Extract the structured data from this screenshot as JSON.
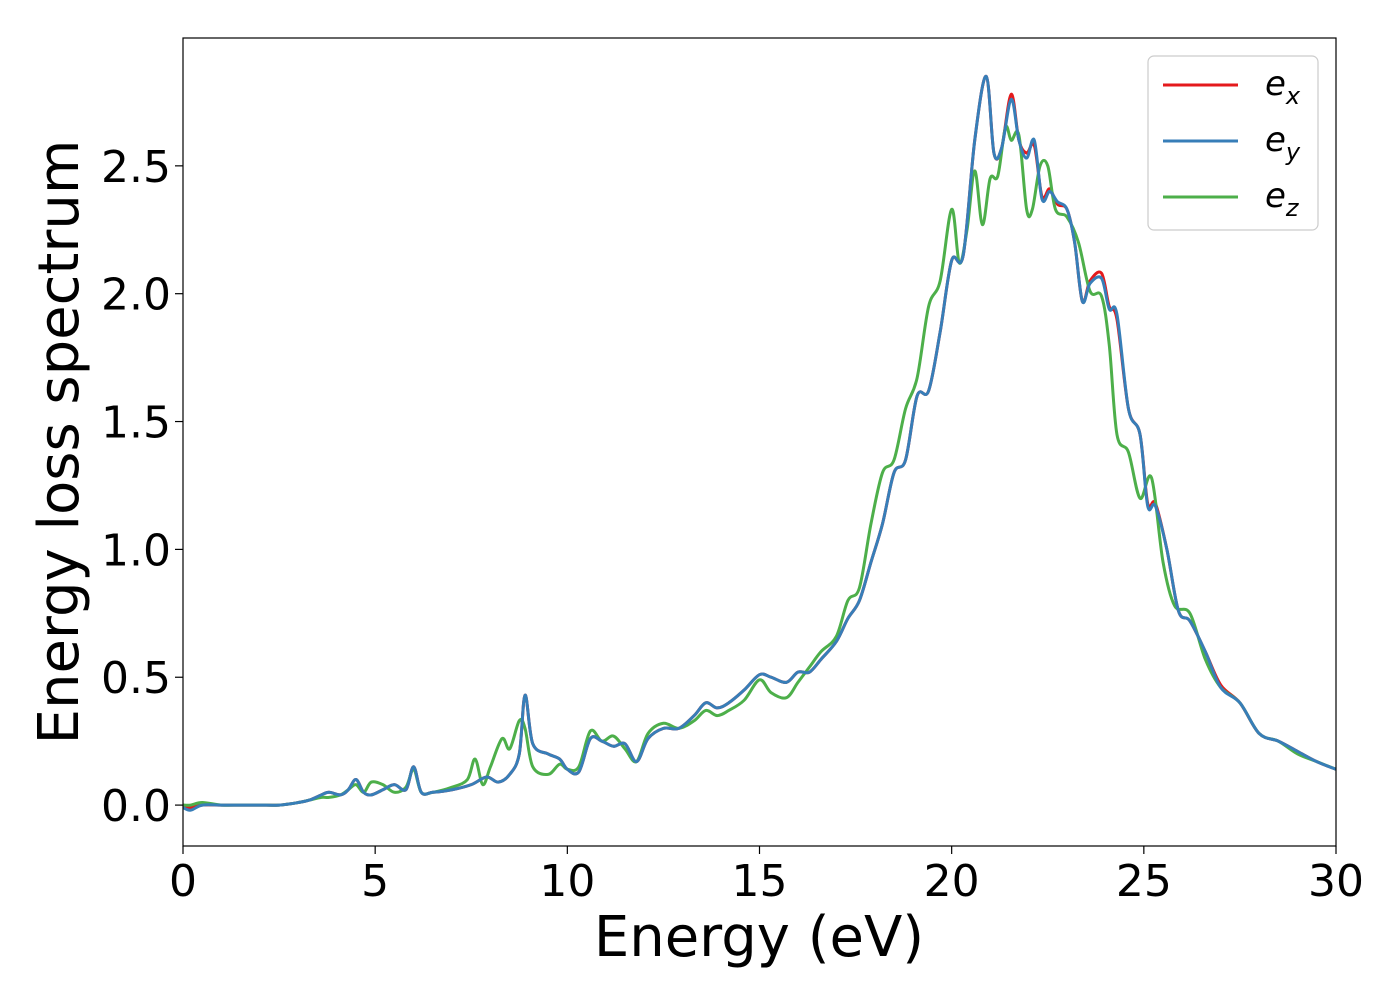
{
  "chart_data": {
    "type": "line",
    "xlabel": "Energy (eV)",
    "ylabel": "Energy loss spectrum",
    "xlim": [
      0,
      30
    ],
    "ylim": [
      -0.16,
      3.0
    ],
    "xticks": [
      "0",
      "5",
      "10",
      "15",
      "20",
      "25",
      "30"
    ],
    "yticks": [
      "0.0",
      "0.5",
      "1.0",
      "1.5",
      "2.0",
      "2.5"
    ],
    "grid": false,
    "legend_position": "top-right",
    "series": [
      {
        "name": "e",
        "subscript": "x",
        "color": "#e41a1c",
        "x": [
          0,
          0.2,
          0.5,
          1,
          1.5,
          2,
          2.5,
          3,
          3.3,
          3.6,
          3.8,
          4.1,
          4.3,
          4.5,
          4.7,
          4.9,
          5.2,
          5.5,
          5.8,
          6.0,
          6.2,
          6.5,
          7.0,
          7.5,
          7.9,
          8.2,
          8.5,
          8.75,
          8.9,
          9.1,
          9.5,
          9.8,
          10.0,
          10.3,
          10.6,
          10.9,
          11.2,
          11.5,
          11.8,
          12.1,
          12.5,
          12.9,
          13.3,
          13.6,
          13.9,
          14.2,
          14.6,
          15.0,
          15.3,
          15.7,
          16.0,
          16.3,
          16.6,
          17.0,
          17.3,
          17.6,
          17.9,
          18.2,
          18.5,
          18.8,
          19.1,
          19.4,
          19.7,
          20.0,
          20.3,
          20.6,
          20.9,
          21.1,
          21.3,
          21.55,
          21.75,
          21.95,
          22.15,
          22.35,
          22.55,
          22.75,
          23.0,
          23.2,
          23.4,
          23.6,
          23.9,
          24.1,
          24.3,
          24.6,
          24.9,
          25.1,
          25.3,
          25.6,
          25.9,
          26.2,
          26.6,
          27.0,
          27.5,
          28.0,
          28.5,
          29.0,
          29.5,
          30.0
        ],
        "y": [
          0.0,
          -0.01,
          0.0,
          0.0,
          0.0,
          0.0,
          0.0,
          0.01,
          0.02,
          0.04,
          0.05,
          0.04,
          0.06,
          0.1,
          0.05,
          0.04,
          0.06,
          0.08,
          0.06,
          0.15,
          0.05,
          0.05,
          0.06,
          0.08,
          0.11,
          0.09,
          0.12,
          0.2,
          0.43,
          0.24,
          0.2,
          0.18,
          0.14,
          0.13,
          0.26,
          0.25,
          0.23,
          0.24,
          0.17,
          0.26,
          0.3,
          0.3,
          0.35,
          0.4,
          0.38,
          0.4,
          0.45,
          0.51,
          0.5,
          0.48,
          0.52,
          0.52,
          0.57,
          0.64,
          0.73,
          0.8,
          0.95,
          1.1,
          1.3,
          1.35,
          1.6,
          1.62,
          1.85,
          2.13,
          2.15,
          2.6,
          2.85,
          2.55,
          2.57,
          2.78,
          2.6,
          2.55,
          2.58,
          2.38,
          2.41,
          2.35,
          2.33,
          2.2,
          1.97,
          2.05,
          2.08,
          1.95,
          1.9,
          1.55,
          1.45,
          1.18,
          1.18,
          1.0,
          0.76,
          0.72,
          0.6,
          0.47,
          0.4,
          0.28,
          0.25,
          0.21,
          0.17,
          0.14
        ]
      },
      {
        "name": "e",
        "subscript": "y",
        "color": "#377eb8",
        "x": [
          0,
          0.2,
          0.5,
          1,
          1.5,
          2,
          2.5,
          3,
          3.3,
          3.6,
          3.8,
          4.1,
          4.3,
          4.5,
          4.7,
          4.9,
          5.2,
          5.5,
          5.8,
          6.0,
          6.2,
          6.5,
          7.0,
          7.5,
          7.9,
          8.2,
          8.5,
          8.75,
          8.9,
          9.1,
          9.5,
          9.8,
          10.0,
          10.3,
          10.6,
          10.9,
          11.2,
          11.5,
          11.8,
          12.1,
          12.5,
          12.9,
          13.3,
          13.6,
          13.9,
          14.2,
          14.6,
          15.0,
          15.3,
          15.7,
          16.0,
          16.3,
          16.6,
          17.0,
          17.3,
          17.6,
          17.9,
          18.2,
          18.5,
          18.8,
          19.1,
          19.4,
          19.7,
          20.0,
          20.3,
          20.6,
          20.9,
          21.1,
          21.3,
          21.55,
          21.75,
          21.95,
          22.15,
          22.35,
          22.55,
          22.75,
          23.0,
          23.2,
          23.4,
          23.6,
          23.9,
          24.1,
          24.3,
          24.6,
          24.9,
          25.1,
          25.3,
          25.6,
          25.9,
          26.2,
          26.6,
          27.0,
          27.5,
          28.0,
          28.5,
          29.0,
          29.5,
          30.0
        ],
        "y": [
          -0.01,
          -0.02,
          0.0,
          0.0,
          0.0,
          0.0,
          0.0,
          0.01,
          0.02,
          0.04,
          0.05,
          0.04,
          0.06,
          0.1,
          0.05,
          0.04,
          0.06,
          0.08,
          0.06,
          0.15,
          0.05,
          0.05,
          0.06,
          0.08,
          0.11,
          0.09,
          0.12,
          0.2,
          0.43,
          0.24,
          0.2,
          0.18,
          0.14,
          0.13,
          0.26,
          0.25,
          0.23,
          0.24,
          0.17,
          0.26,
          0.3,
          0.3,
          0.35,
          0.4,
          0.38,
          0.4,
          0.45,
          0.51,
          0.5,
          0.48,
          0.52,
          0.52,
          0.57,
          0.64,
          0.73,
          0.8,
          0.95,
          1.1,
          1.3,
          1.35,
          1.6,
          1.62,
          1.85,
          2.13,
          2.15,
          2.6,
          2.85,
          2.55,
          2.57,
          2.76,
          2.6,
          2.53,
          2.6,
          2.37,
          2.4,
          2.36,
          2.33,
          2.2,
          1.97,
          2.04,
          2.06,
          1.94,
          1.92,
          1.55,
          1.45,
          1.17,
          1.17,
          1.0,
          0.76,
          0.72,
          0.6,
          0.46,
          0.4,
          0.28,
          0.25,
          0.21,
          0.17,
          0.14
        ]
      },
      {
        "name": "e",
        "subscript": "z",
        "color": "#4daf4a",
        "x": [
          0,
          0.2,
          0.5,
          1,
          1.5,
          2,
          2.5,
          3,
          3.3,
          3.6,
          3.8,
          4.1,
          4.3,
          4.5,
          4.7,
          4.9,
          5.2,
          5.5,
          5.8,
          6.0,
          6.2,
          6.5,
          7.0,
          7.4,
          7.6,
          7.8,
          8.0,
          8.3,
          8.5,
          8.75,
          8.9,
          9.1,
          9.5,
          9.8,
          10.0,
          10.3,
          10.6,
          10.9,
          11.2,
          11.5,
          11.8,
          12.1,
          12.5,
          12.9,
          13.3,
          13.6,
          13.9,
          14.2,
          14.6,
          15.0,
          15.3,
          15.7,
          16.0,
          16.3,
          16.6,
          17.0,
          17.3,
          17.6,
          17.9,
          18.2,
          18.5,
          18.8,
          19.1,
          19.4,
          19.7,
          20.0,
          20.2,
          20.4,
          20.6,
          20.8,
          21.0,
          21.2,
          21.4,
          21.55,
          21.75,
          21.95,
          22.1,
          22.3,
          22.5,
          22.7,
          23.0,
          23.3,
          23.6,
          23.9,
          24.1,
          24.3,
          24.6,
          24.9,
          25.2,
          25.5,
          25.8,
          26.2,
          26.6,
          27.0,
          27.5,
          28.0,
          28.5,
          29.0,
          29.5,
          30.0
        ],
        "y": [
          0.0,
          0.0,
          0.01,
          0.0,
          0.0,
          0.0,
          0.0,
          0.01,
          0.02,
          0.03,
          0.03,
          0.04,
          0.06,
          0.08,
          0.05,
          0.09,
          0.08,
          0.05,
          0.07,
          0.14,
          0.05,
          0.05,
          0.07,
          0.1,
          0.18,
          0.08,
          0.15,
          0.26,
          0.22,
          0.33,
          0.3,
          0.15,
          0.12,
          0.16,
          0.14,
          0.15,
          0.29,
          0.25,
          0.27,
          0.22,
          0.17,
          0.28,
          0.32,
          0.3,
          0.33,
          0.37,
          0.35,
          0.37,
          0.41,
          0.49,
          0.44,
          0.42,
          0.48,
          0.54,
          0.6,
          0.66,
          0.8,
          0.85,
          1.1,
          1.3,
          1.35,
          1.55,
          1.67,
          1.95,
          2.05,
          2.33,
          2.12,
          2.25,
          2.48,
          2.27,
          2.45,
          2.46,
          2.65,
          2.6,
          2.62,
          2.33,
          2.33,
          2.5,
          2.5,
          2.33,
          2.3,
          2.2,
          2.01,
          1.99,
          1.8,
          1.45,
          1.38,
          1.2,
          1.28,
          0.95,
          0.78,
          0.75,
          0.57,
          0.46,
          0.4,
          0.28,
          0.25,
          0.2,
          0.17,
          0.14
        ]
      }
    ]
  }
}
